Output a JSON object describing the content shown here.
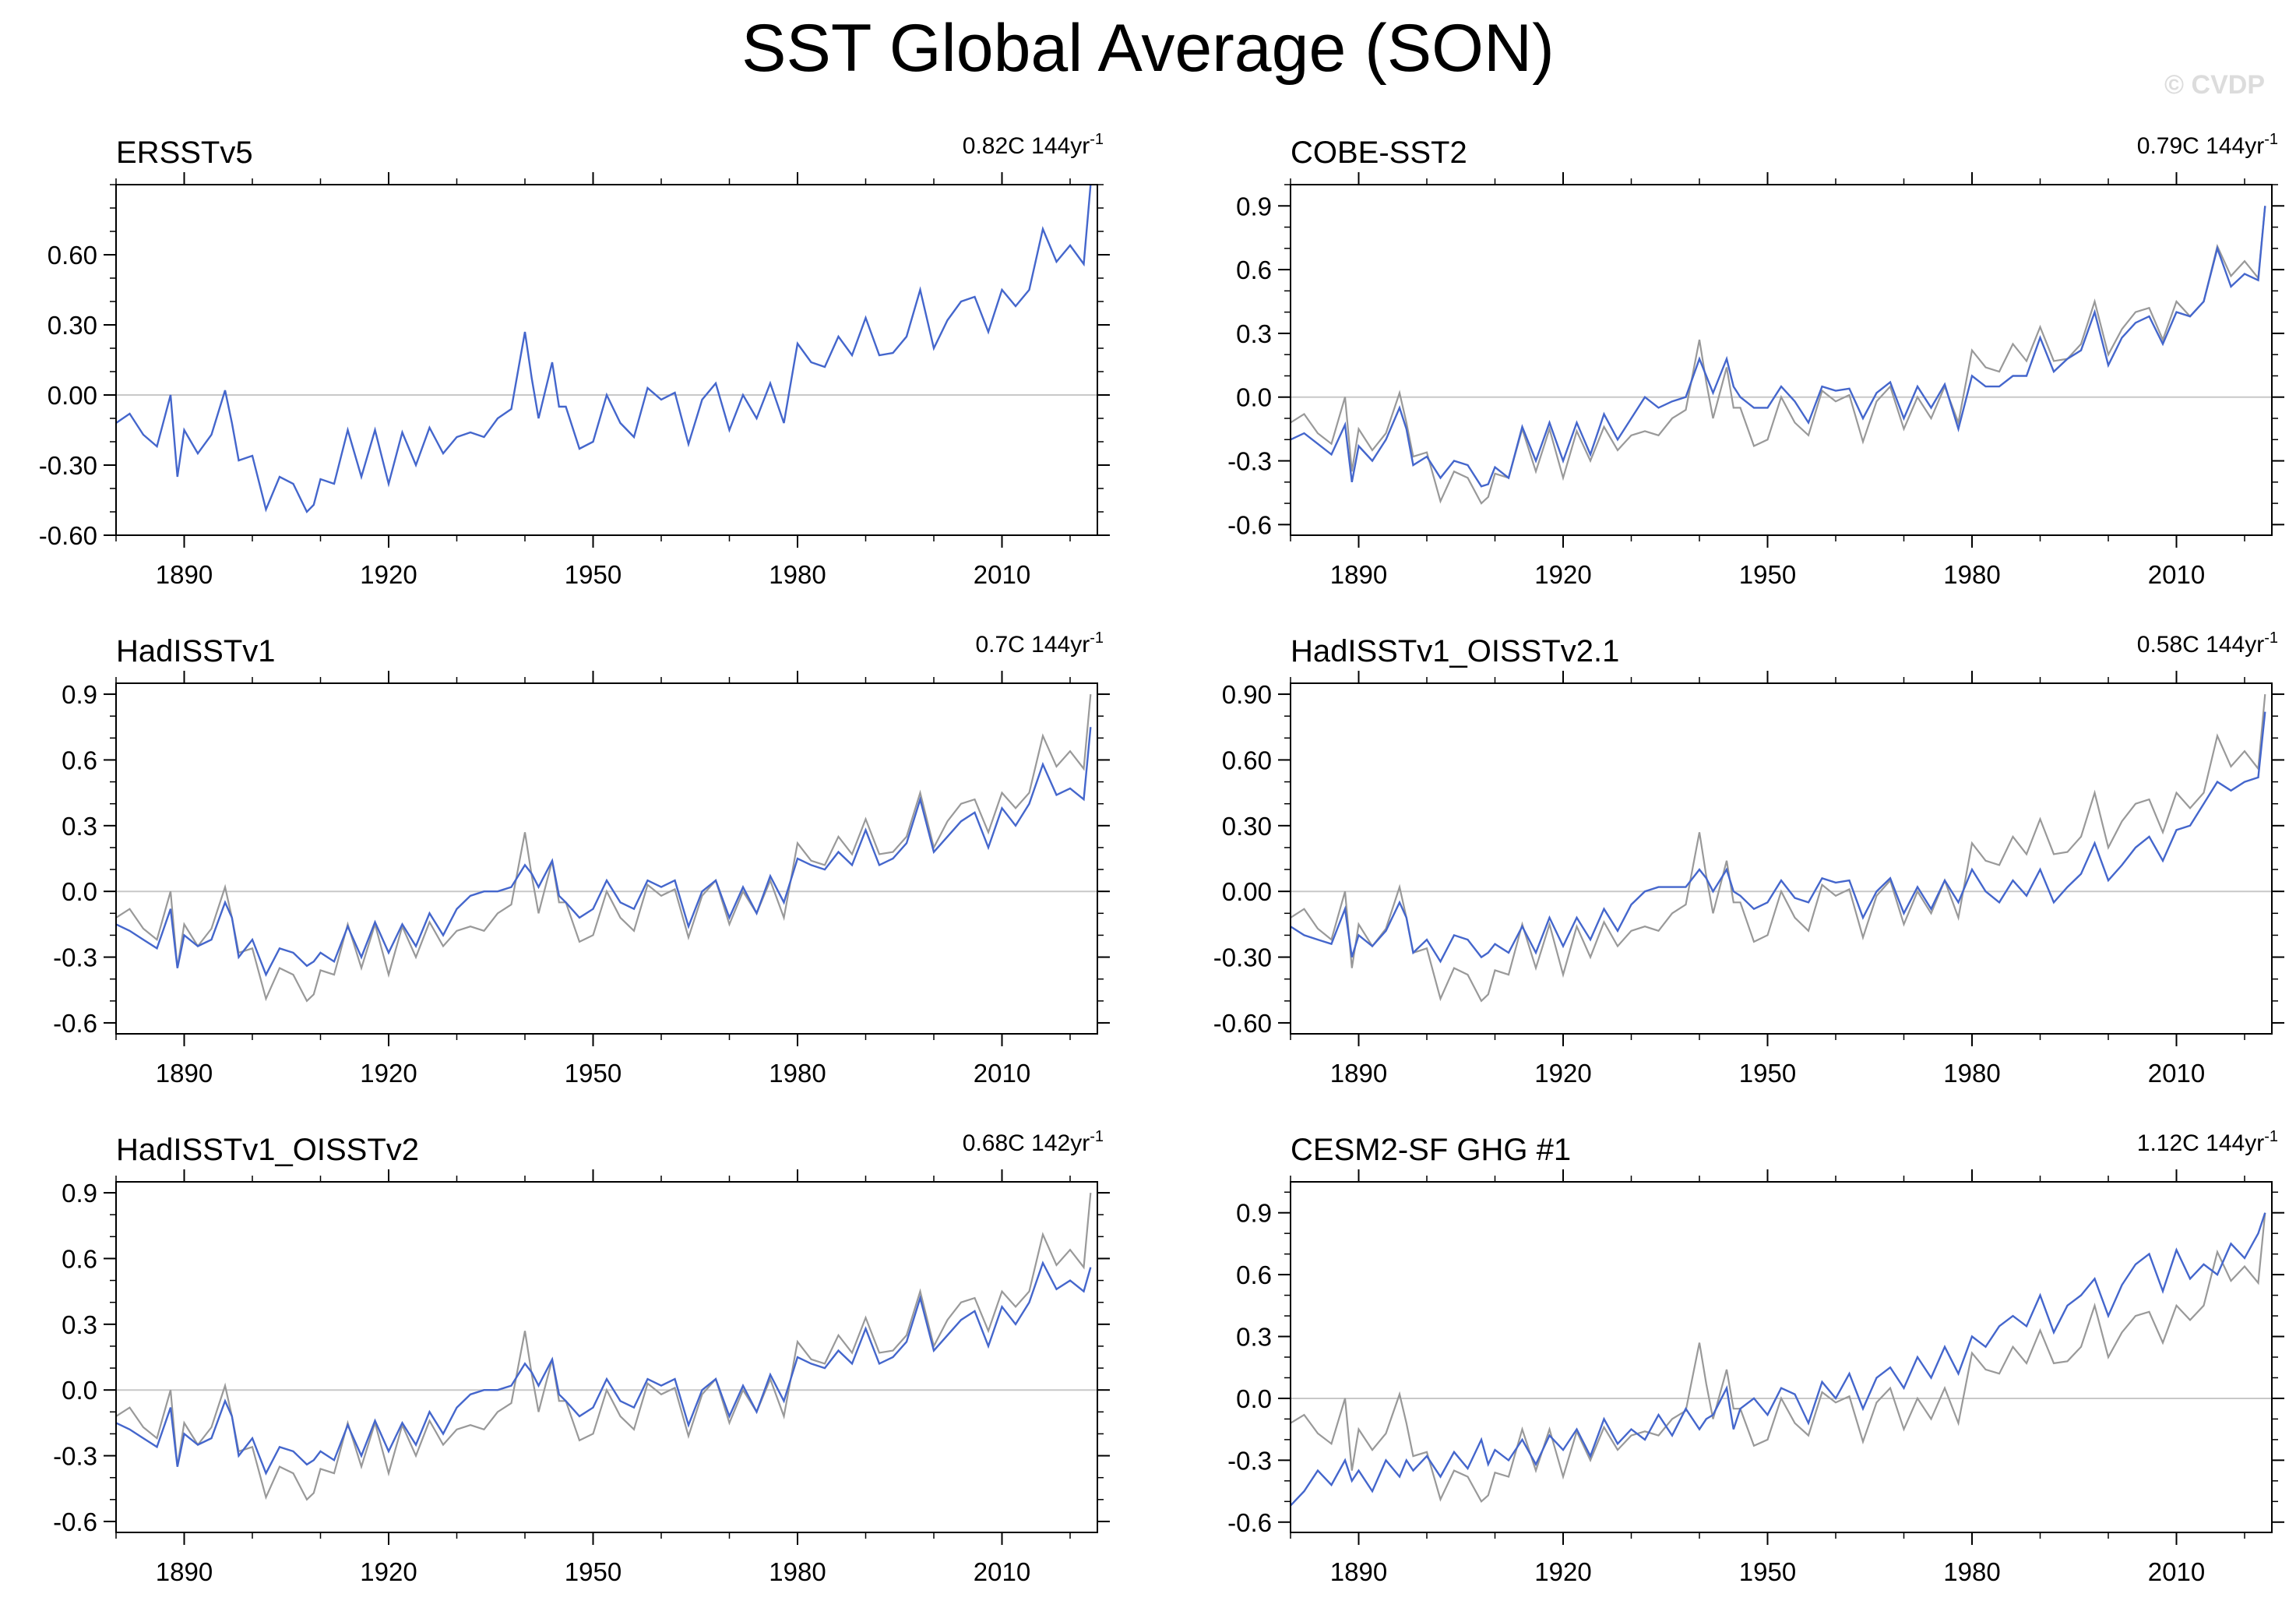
{
  "title": "SST Global Average (SON)",
  "copyright": "© CVDP",
  "colors": {
    "observed": "#4466cc",
    "reference": "#999999",
    "zero_line": "#c8c8c8",
    "axis": "#000000"
  },
  "chart_data": [
    {
      "type": "line",
      "title": "ERSSTv5",
      "trend": "0.82C 144yr",
      "trend_superscript": "-1",
      "xlim": [
        1880,
        2024
      ],
      "ylim": [
        -0.6,
        0.9
      ],
      "ytick_values": [
        -0.6,
        -0.3,
        0.0,
        0.3,
        0.6
      ],
      "ytick_labels": [
        "-0.60",
        "-0.30",
        "0.00",
        "0.30",
        "0.60"
      ],
      "xtick_labels": [
        "1890",
        "1920",
        "1950",
        "1980",
        "2010"
      ],
      "series_key": "ersst",
      "show_reference": false
    },
    {
      "type": "line",
      "title": "COBE-SST2",
      "trend": "0.79C 144yr",
      "trend_superscript": "-1",
      "xlim": [
        1880,
        2024
      ],
      "ylim": [
        -0.65,
        1.0
      ],
      "ytick_values": [
        -0.6,
        -0.3,
        0.0,
        0.3,
        0.6,
        0.9
      ],
      "ytick_labels": [
        "-0.6",
        "-0.3",
        "0.0",
        "0.3",
        "0.6",
        "0.9"
      ],
      "xtick_labels": [
        "1890",
        "1920",
        "1950",
        "1980",
        "2010"
      ],
      "series_key": "cobe",
      "show_reference": true
    },
    {
      "type": "line",
      "title": "HadISSTv1",
      "trend": "0.7C 144yr",
      "trend_superscript": "-1",
      "xlim": [
        1880,
        2024
      ],
      "ylim": [
        -0.65,
        0.95
      ],
      "ytick_values": [
        -0.6,
        -0.3,
        0.0,
        0.3,
        0.6,
        0.9
      ],
      "ytick_labels": [
        "-0.6",
        "-0.3",
        "0.0",
        "0.3",
        "0.6",
        "0.9"
      ],
      "xtick_labels": [
        "1890",
        "1920",
        "1950",
        "1980",
        "2010"
      ],
      "series_key": "had",
      "show_reference": true
    },
    {
      "type": "line",
      "title": "HadISSTv1_OISSTv2.1",
      "trend": "0.58C 144yr",
      "trend_superscript": "-1",
      "xlim": [
        1880,
        2024
      ],
      "ylim": [
        -0.65,
        0.95
      ],
      "ytick_values": [
        -0.6,
        -0.3,
        0.0,
        0.3,
        0.6,
        0.9
      ],
      "ytick_labels": [
        "-0.60",
        "-0.30",
        "0.00",
        "0.30",
        "0.60",
        "0.90"
      ],
      "xtick_labels": [
        "1890",
        "1920",
        "1950",
        "1980",
        "2010"
      ],
      "series_key": "hadoi21",
      "show_reference": true
    },
    {
      "type": "line",
      "title": "HadISSTv1_OISSTv2",
      "trend": "0.68C 142yr",
      "trend_superscript": "-1",
      "xlim": [
        1880,
        2024
      ],
      "ylim": [
        -0.65,
        0.95
      ],
      "ytick_values": [
        -0.6,
        -0.3,
        0.0,
        0.3,
        0.6,
        0.9
      ],
      "ytick_labels": [
        "-0.6",
        "-0.3",
        "0.0",
        "0.3",
        "0.6",
        "0.9"
      ],
      "xtick_labels": [
        "1890",
        "1920",
        "1950",
        "1980",
        "2010"
      ],
      "series_key": "hadoi2",
      "show_reference": true
    },
    {
      "type": "line",
      "title": "CESM2-SF GHG #1",
      "trend": "1.12C 144yr",
      "trend_superscript": "-1",
      "xlim": [
        1880,
        2024
      ],
      "ylim": [
        -0.65,
        1.05
      ],
      "ytick_values": [
        -0.6,
        -0.3,
        0.0,
        0.3,
        0.6,
        0.9
      ],
      "ytick_labels": [
        "-0.6",
        "-0.3",
        "0.0",
        "0.3",
        "0.6",
        "0.9"
      ],
      "xtick_labels": [
        "1890",
        "1920",
        "1950",
        "1980",
        "2010"
      ],
      "series_key": "cesm",
      "show_reference": true
    }
  ],
  "series": {
    "years": [
      1880,
      1882,
      1884,
      1886,
      1888,
      1889,
      1890,
      1892,
      1894,
      1896,
      1897,
      1898,
      1900,
      1902,
      1904,
      1906,
      1908,
      1909,
      1910,
      1912,
      1914,
      1916,
      1918,
      1920,
      1922,
      1924,
      1926,
      1928,
      1930,
      1932,
      1934,
      1936,
      1938,
      1940,
      1941,
      1942,
      1944,
      1945,
      1946,
      1948,
      1950,
      1952,
      1954,
      1956,
      1958,
      1960,
      1962,
      1964,
      1966,
      1968,
      1970,
      1972,
      1974,
      1976,
      1978,
      1980,
      1982,
      1984,
      1986,
      1988,
      1990,
      1992,
      1994,
      1996,
      1998,
      2000,
      2002,
      2004,
      2006,
      2008,
      2010,
      2012,
      2014,
      2016,
      2018,
      2020,
      2022,
      2023
    ],
    "ersst": [
      -0.12,
      -0.08,
      -0.17,
      -0.22,
      0.0,
      -0.35,
      -0.15,
      -0.25,
      -0.17,
      0.02,
      -0.12,
      -0.28,
      -0.26,
      -0.49,
      -0.35,
      -0.38,
      -0.5,
      -0.47,
      -0.36,
      -0.38,
      -0.15,
      -0.35,
      -0.15,
      -0.38,
      -0.16,
      -0.3,
      -0.14,
      -0.25,
      -0.18,
      -0.16,
      -0.18,
      -0.1,
      -0.06,
      0.27,
      0.07,
      -0.1,
      0.14,
      -0.05,
      -0.05,
      -0.23,
      -0.2,
      0.0,
      -0.12,
      -0.18,
      0.03,
      -0.02,
      0.01,
      -0.21,
      -0.02,
      0.05,
      -0.15,
      0.0,
      -0.1,
      0.05,
      -0.12,
      0.22,
      0.14,
      0.12,
      0.25,
      0.17,
      0.33,
      0.17,
      0.18,
      0.25,
      0.45,
      0.2,
      0.32,
      0.4,
      0.42,
      0.27,
      0.45,
      0.38,
      0.45,
      0.71,
      0.57,
      0.64,
      0.56,
      0.9
    ],
    "cobe": [
      -0.2,
      -0.17,
      -0.22,
      -0.27,
      -0.13,
      -0.4,
      -0.23,
      -0.3,
      -0.2,
      -0.05,
      -0.15,
      -0.32,
      -0.28,
      -0.38,
      -0.3,
      -0.32,
      -0.42,
      -0.41,
      -0.33,
      -0.38,
      -0.14,
      -0.3,
      -0.12,
      -0.3,
      -0.12,
      -0.27,
      -0.08,
      -0.2,
      -0.1,
      0.0,
      -0.05,
      -0.02,
      0.0,
      0.18,
      0.1,
      0.02,
      0.18,
      0.05,
      0.0,
      -0.05,
      -0.05,
      0.05,
      -0.02,
      -0.12,
      0.05,
      0.03,
      0.04,
      -0.1,
      0.02,
      0.07,
      -0.1,
      0.05,
      -0.05,
      0.06,
      -0.15,
      0.1,
      0.05,
      0.05,
      0.1,
      0.1,
      0.28,
      0.12,
      0.18,
      0.22,
      0.4,
      0.15,
      0.28,
      0.35,
      0.38,
      0.25,
      0.4,
      0.38,
      0.45,
      0.7,
      0.52,
      0.58,
      0.55,
      0.9
    ],
    "had": [
      -0.15,
      -0.18,
      -0.22,
      -0.26,
      -0.08,
      -0.35,
      -0.2,
      -0.25,
      -0.22,
      -0.05,
      -0.12,
      -0.3,
      -0.22,
      -0.38,
      -0.26,
      -0.28,
      -0.34,
      -0.32,
      -0.28,
      -0.32,
      -0.16,
      -0.3,
      -0.14,
      -0.28,
      -0.15,
      -0.25,
      -0.1,
      -0.2,
      -0.08,
      -0.02,
      0.0,
      0.0,
      0.02,
      0.12,
      0.08,
      0.02,
      0.14,
      -0.02,
      -0.05,
      -0.12,
      -0.08,
      0.05,
      -0.05,
      -0.08,
      0.05,
      0.02,
      0.05,
      -0.16,
      0.0,
      0.05,
      -0.12,
      0.02,
      -0.1,
      0.07,
      -0.05,
      0.15,
      0.12,
      0.1,
      0.18,
      0.12,
      0.28,
      0.12,
      0.15,
      0.22,
      0.42,
      0.18,
      0.25,
      0.32,
      0.36,
      0.2,
      0.38,
      0.3,
      0.4,
      0.58,
      0.44,
      0.47,
      0.42,
      0.75
    ],
    "hadoi21": [
      -0.16,
      -0.2,
      -0.22,
      -0.24,
      -0.08,
      -0.3,
      -0.2,
      -0.25,
      -0.18,
      -0.05,
      -0.12,
      -0.28,
      -0.22,
      -0.32,
      -0.2,
      -0.22,
      -0.3,
      -0.28,
      -0.24,
      -0.28,
      -0.16,
      -0.28,
      -0.12,
      -0.25,
      -0.12,
      -0.22,
      -0.08,
      -0.18,
      -0.06,
      0.0,
      0.02,
      0.02,
      0.02,
      0.1,
      0.06,
      0.0,
      0.1,
      0.0,
      -0.02,
      -0.08,
      -0.05,
      0.05,
      -0.03,
      -0.05,
      0.06,
      0.04,
      0.05,
      -0.12,
      0.0,
      0.06,
      -0.1,
      0.02,
      -0.08,
      0.05,
      -0.05,
      0.1,
      0.0,
      -0.05,
      0.05,
      -0.02,
      0.1,
      -0.05,
      0.02,
      0.08,
      0.22,
      0.05,
      0.12,
      0.2,
      0.25,
      0.14,
      0.28,
      0.3,
      0.4,
      0.5,
      0.46,
      0.5,
      0.52,
      0.82
    ],
    "hadoi2": [
      -0.15,
      -0.18,
      -0.22,
      -0.26,
      -0.08,
      -0.35,
      -0.2,
      -0.25,
      -0.22,
      -0.05,
      -0.12,
      -0.3,
      -0.22,
      -0.38,
      -0.26,
      -0.28,
      -0.34,
      -0.32,
      -0.28,
      -0.32,
      -0.16,
      -0.3,
      -0.14,
      -0.28,
      -0.15,
      -0.25,
      -0.1,
      -0.2,
      -0.08,
      -0.02,
      0.0,
      0.0,
      0.02,
      0.12,
      0.08,
      0.02,
      0.14,
      -0.02,
      -0.05,
      -0.12,
      -0.08,
      0.05,
      -0.05,
      -0.08,
      0.05,
      0.02,
      0.05,
      -0.16,
      0.0,
      0.05,
      -0.12,
      0.02,
      -0.1,
      0.07,
      -0.05,
      0.15,
      0.12,
      0.1,
      0.18,
      0.12,
      0.28,
      0.12,
      0.15,
      0.22,
      0.42,
      0.18,
      0.25,
      0.32,
      0.36,
      0.2,
      0.38,
      0.3,
      0.4,
      0.58,
      0.46,
      0.5,
      0.45,
      0.56
    ],
    "cesm": [
      -0.52,
      -0.45,
      -0.35,
      -0.42,
      -0.3,
      -0.4,
      -0.35,
      -0.45,
      -0.3,
      -0.38,
      -0.3,
      -0.35,
      -0.28,
      -0.38,
      -0.26,
      -0.34,
      -0.2,
      -0.32,
      -0.25,
      -0.3,
      -0.2,
      -0.32,
      -0.18,
      -0.25,
      -0.15,
      -0.28,
      -0.1,
      -0.22,
      -0.15,
      -0.2,
      -0.08,
      -0.18,
      -0.05,
      -0.15,
      -0.1,
      -0.08,
      0.05,
      -0.15,
      -0.05,
      0.0,
      -0.08,
      0.05,
      0.02,
      -0.12,
      0.08,
      0.0,
      0.12,
      -0.05,
      0.1,
      0.15,
      0.05,
      0.2,
      0.1,
      0.25,
      0.12,
      0.3,
      0.25,
      0.35,
      0.4,
      0.35,
      0.5,
      0.32,
      0.45,
      0.5,
      0.58,
      0.4,
      0.55,
      0.65,
      0.7,
      0.52,
      0.72,
      0.58,
      0.65,
      0.6,
      0.75,
      0.68,
      0.8,
      0.9
    ],
    "reference": [
      -0.12,
      -0.08,
      -0.17,
      -0.22,
      0.0,
      -0.35,
      -0.15,
      -0.25,
      -0.17,
      0.02,
      -0.12,
      -0.28,
      -0.26,
      -0.49,
      -0.35,
      -0.38,
      -0.5,
      -0.47,
      -0.36,
      -0.38,
      -0.15,
      -0.35,
      -0.15,
      -0.38,
      -0.16,
      -0.3,
      -0.14,
      -0.25,
      -0.18,
      -0.16,
      -0.18,
      -0.1,
      -0.06,
      0.27,
      0.07,
      -0.1,
      0.14,
      -0.05,
      -0.05,
      -0.23,
      -0.2,
      0.0,
      -0.12,
      -0.18,
      0.03,
      -0.02,
      0.01,
      -0.21,
      -0.02,
      0.05,
      -0.15,
      0.0,
      -0.1,
      0.05,
      -0.12,
      0.22,
      0.14,
      0.12,
      0.25,
      0.17,
      0.33,
      0.17,
      0.18,
      0.25,
      0.45,
      0.2,
      0.32,
      0.4,
      0.42,
      0.27,
      0.45,
      0.38,
      0.45,
      0.71,
      0.57,
      0.64,
      0.56,
      0.9
    ]
  }
}
